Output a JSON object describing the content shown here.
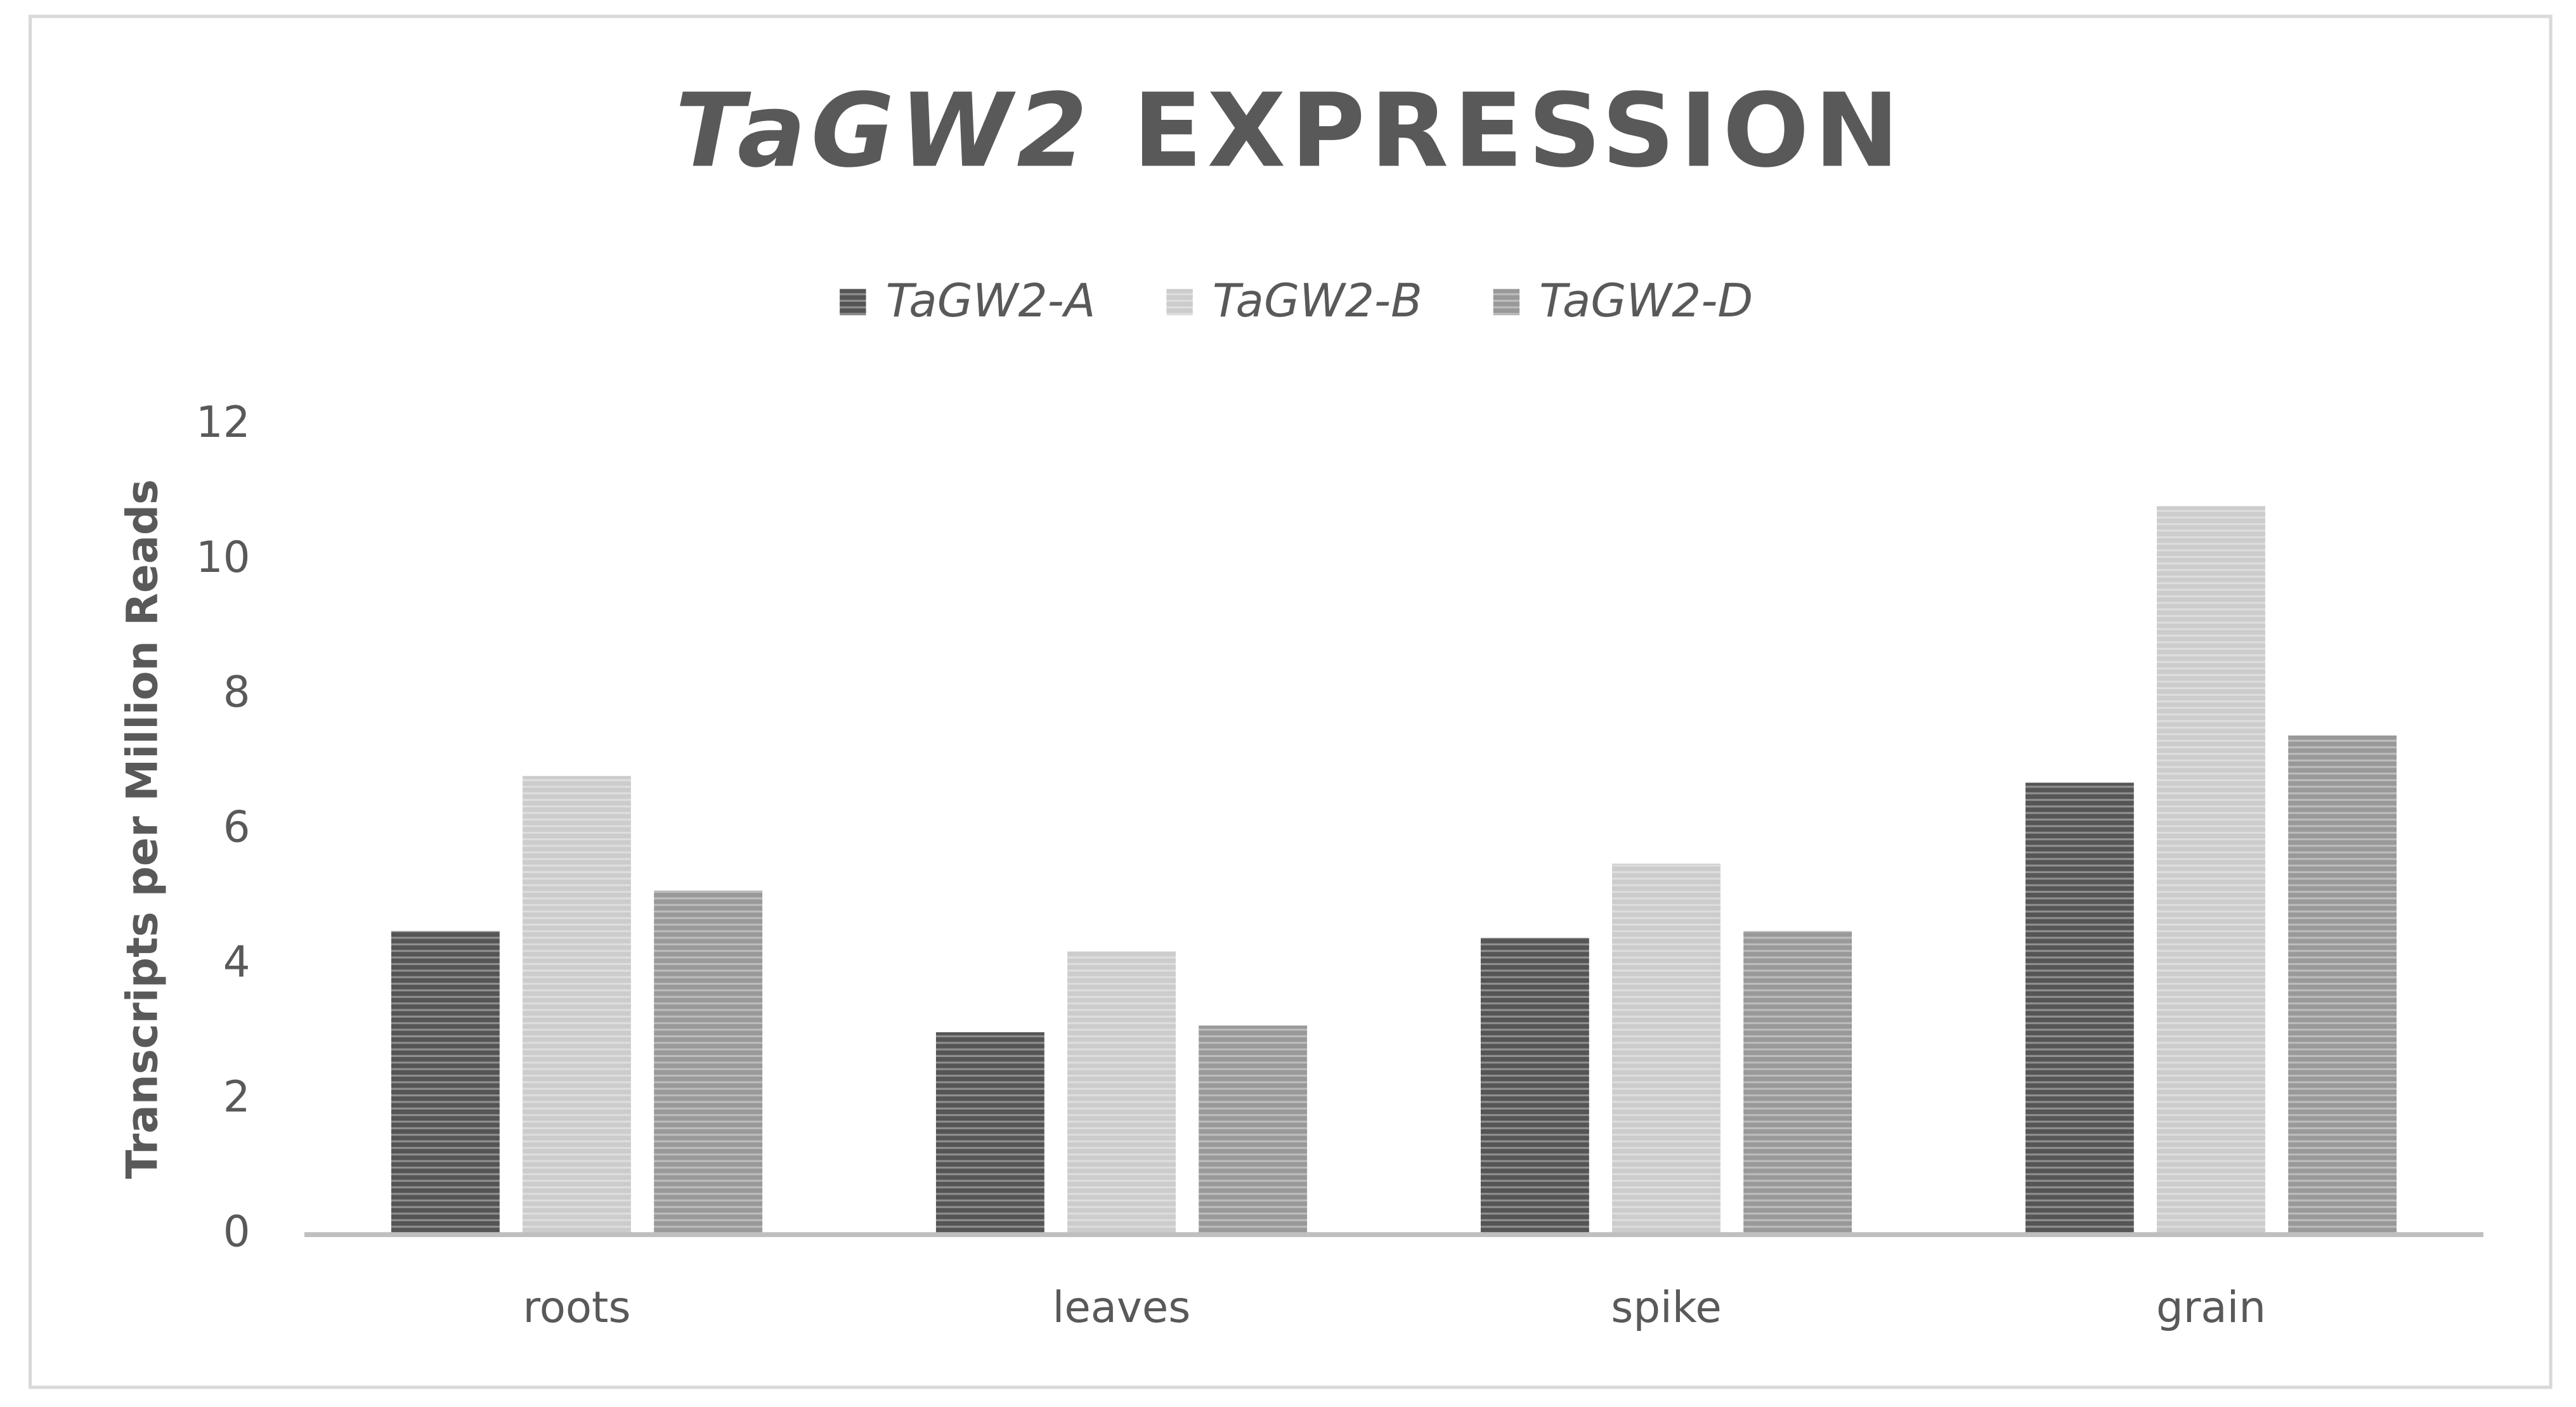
{
  "chart_data": {
    "type": "bar",
    "title": [
      "TaGW2",
      "EXPRESSION"
    ],
    "y_label": "Transcripts per Million Reads",
    "categories": [
      "roots",
      "leaves",
      "spike",
      "grain"
    ],
    "series": [
      {
        "name": "TaGW2-A",
        "color": "#555555",
        "values": [
          4.5,
          3.0,
          4.4,
          6.7
        ]
      },
      {
        "name": "TaGW2-B",
        "color": "#cccccc",
        "values": [
          6.8,
          4.2,
          5.5,
          10.8
        ]
      },
      {
        "name": "TaGW2-D",
        "color": "#999999",
        "values": [
          5.1,
          3.1,
          4.5,
          7.4
        ]
      }
    ],
    "ylim": [
      0,
      12
    ],
    "yticks": [
      0,
      2,
      4,
      6,
      8,
      10,
      12
    ],
    "grid": false,
    "legend": "top"
  }
}
